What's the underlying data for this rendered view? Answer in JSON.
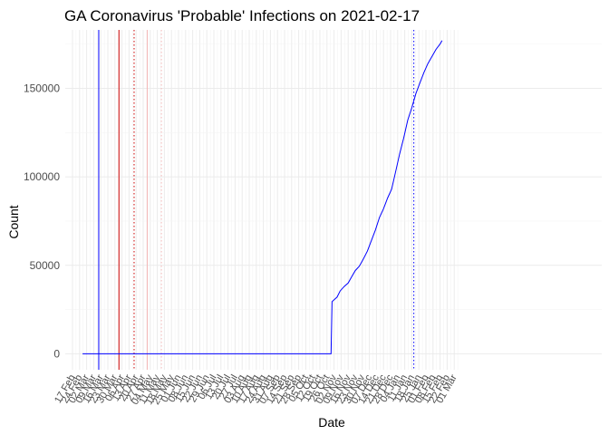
{
  "chart_data": {
    "type": "line",
    "title": "GA Coronavirus 'Probable' Infections on 2021-02-17",
    "xlabel": "Date",
    "ylabel": "Count",
    "x_ticks": [
      "17 Feb",
      "24 Feb",
      "02 Mar",
      "09 Mar",
      "16 Mar",
      "23 Mar",
      "30 Mar",
      "06 Apr",
      "13 Apr",
      "20 Apr",
      "27 Apr",
      "04 May",
      "11 May",
      "18 May",
      "25 May",
      "01 Jun",
      "08 Jun",
      "15 Jun",
      "22 Jun",
      "29 Jun",
      "06 Jul",
      "13 Jul",
      "20 Jul",
      "27 Jul",
      "03 Aug",
      "10 Aug",
      "17 Aug",
      "24 Aug",
      "31 Aug",
      "07 Sep",
      "14 Sep",
      "21 Sep",
      "28 Sep",
      "05 Oct",
      "12 Oct",
      "19 Oct",
      "26 Oct",
      "02 Nov",
      "09 Nov",
      "16 Nov",
      "23 Nov",
      "30 Nov",
      "07 Dec",
      "14 Dec",
      "21 Dec",
      "28 Dec",
      "04 Jan",
      "11 Jan",
      "18 Jan",
      "25 Jan",
      "01 Feb",
      "08 Feb",
      "15 Feb",
      "22 Feb",
      "01 Mar"
    ],
    "y_ticks": [
      0,
      50000,
      100000,
      150000
    ],
    "y_tick_labels": [
      "0",
      "50000",
      "100000",
      "150000"
    ],
    "ylim": [
      -9000,
      183000
    ],
    "grid": true,
    "series": [
      {
        "color": "#0000ff",
        "points": [
          [
            "2020-02-27",
            0
          ],
          [
            "2020-10-30",
            0
          ],
          [
            "2020-10-31",
            29500
          ],
          [
            "2020-11-05",
            32000
          ],
          [
            "2020-11-08",
            35500
          ],
          [
            "2020-11-12",
            38000
          ],
          [
            "2020-11-16",
            40000
          ],
          [
            "2020-11-19",
            43000
          ],
          [
            "2020-11-23",
            47000
          ],
          [
            "2020-11-27",
            49500
          ],
          [
            "2020-12-01",
            53500
          ],
          [
            "2020-12-05",
            58000
          ],
          [
            "2020-12-09",
            64000
          ],
          [
            "2020-12-13",
            70000
          ],
          [
            "2020-12-17",
            77000
          ],
          [
            "2020-12-21",
            82000
          ],
          [
            "2020-12-25",
            88000
          ],
          [
            "2020-12-29",
            93000
          ],
          [
            "2021-01-02",
            103000
          ],
          [
            "2021-01-06",
            113000
          ],
          [
            "2021-01-10",
            122000
          ],
          [
            "2021-01-14",
            132000
          ],
          [
            "2021-01-18",
            139000
          ],
          [
            "2021-01-22",
            147000
          ],
          [
            "2021-01-26",
            153000
          ],
          [
            "2021-01-30",
            159000
          ],
          [
            "2021-02-03",
            164000
          ],
          [
            "2021-02-07",
            168000
          ],
          [
            "2021-02-11",
            172000
          ],
          [
            "2021-02-15",
            175000
          ],
          [
            "2021-02-17",
            177000
          ]
        ]
      }
    ],
    "vertical_lines": [
      {
        "date": "2020-03-14",
        "color": "#0000ff",
        "style": "solid"
      },
      {
        "date": "2020-04-03",
        "color": "#cc0000",
        "style": "solid"
      },
      {
        "date": "2020-04-18",
        "color": "#cc0000",
        "style": "dotted"
      },
      {
        "date": "2020-05-01",
        "color": "#f4b6b6",
        "style": "solid"
      },
      {
        "date": "2020-05-15",
        "color": "#f4b6b6",
        "style": "dotted"
      },
      {
        "date": "2021-01-20",
        "color": "#0000ff",
        "style": "dotted"
      }
    ]
  }
}
